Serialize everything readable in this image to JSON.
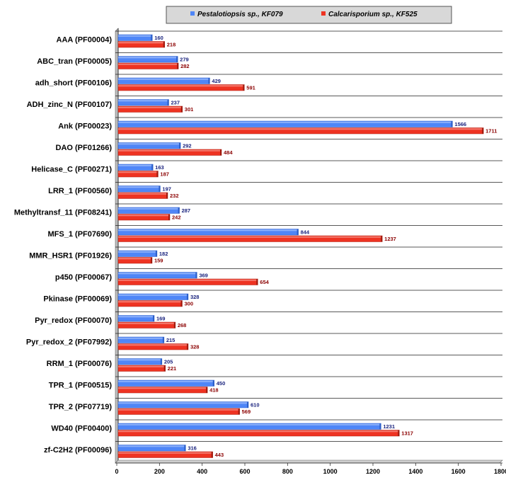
{
  "chart_data": {
    "type": "bar",
    "orientation": "horizontal",
    "categories": [
      "AAA (PF00004)",
      "ABC_tran (PF00005)",
      "adh_short (PF00106)",
      "ADH_zinc_N (PF00107)",
      "Ank (PF00023)",
      "DAO (PF01266)",
      "Helicase_C (PF00271)",
      "LRR_1 (PF00560)",
      "Methyltransf_11 (PF08241)",
      "MFS_1 (PF07690)",
      "MMR_HSR1 (PF01926)",
      "p450 (PF00067)",
      "Pkinase (PF00069)",
      "Pyr_redox (PF00070)",
      "Pyr_redox_2 (PF07992)",
      "RRM_1 (PF00076)",
      "TPR_1 (PF00515)",
      "TPR_2 (PF07719)",
      "WD40 (PF00400)",
      "zf-C2H2 (PF00096)"
    ],
    "series": [
      {
        "name": "Pestalotiopsis sp.,  KF079",
        "color": "#4f86f7",
        "label_color": "#1a237e",
        "values": [
          160,
          279,
          429,
          237,
          1566,
          292,
          163,
          197,
          287,
          844,
          182,
          369,
          328,
          169,
          215,
          205,
          450,
          610,
          1231,
          316
        ]
      },
      {
        "name": "Calcarisporium sp., KF525",
        "color": "#ee3322",
        "label_color": "#8b0000",
        "values": [
          218,
          282,
          591,
          301,
          1711,
          484,
          187,
          232,
          242,
          1237,
          159,
          654,
          300,
          268,
          328,
          221,
          418,
          569,
          1317,
          443
        ]
      }
    ],
    "x_ticks": [
      "0",
      "200",
      "400",
      "600",
      "800",
      "1000",
      "1200",
      "1400",
      "1600",
      "1800"
    ],
    "xlim": [
      0,
      1800
    ],
    "grid": "horizontal separators",
    "legend_position": "top-center"
  }
}
